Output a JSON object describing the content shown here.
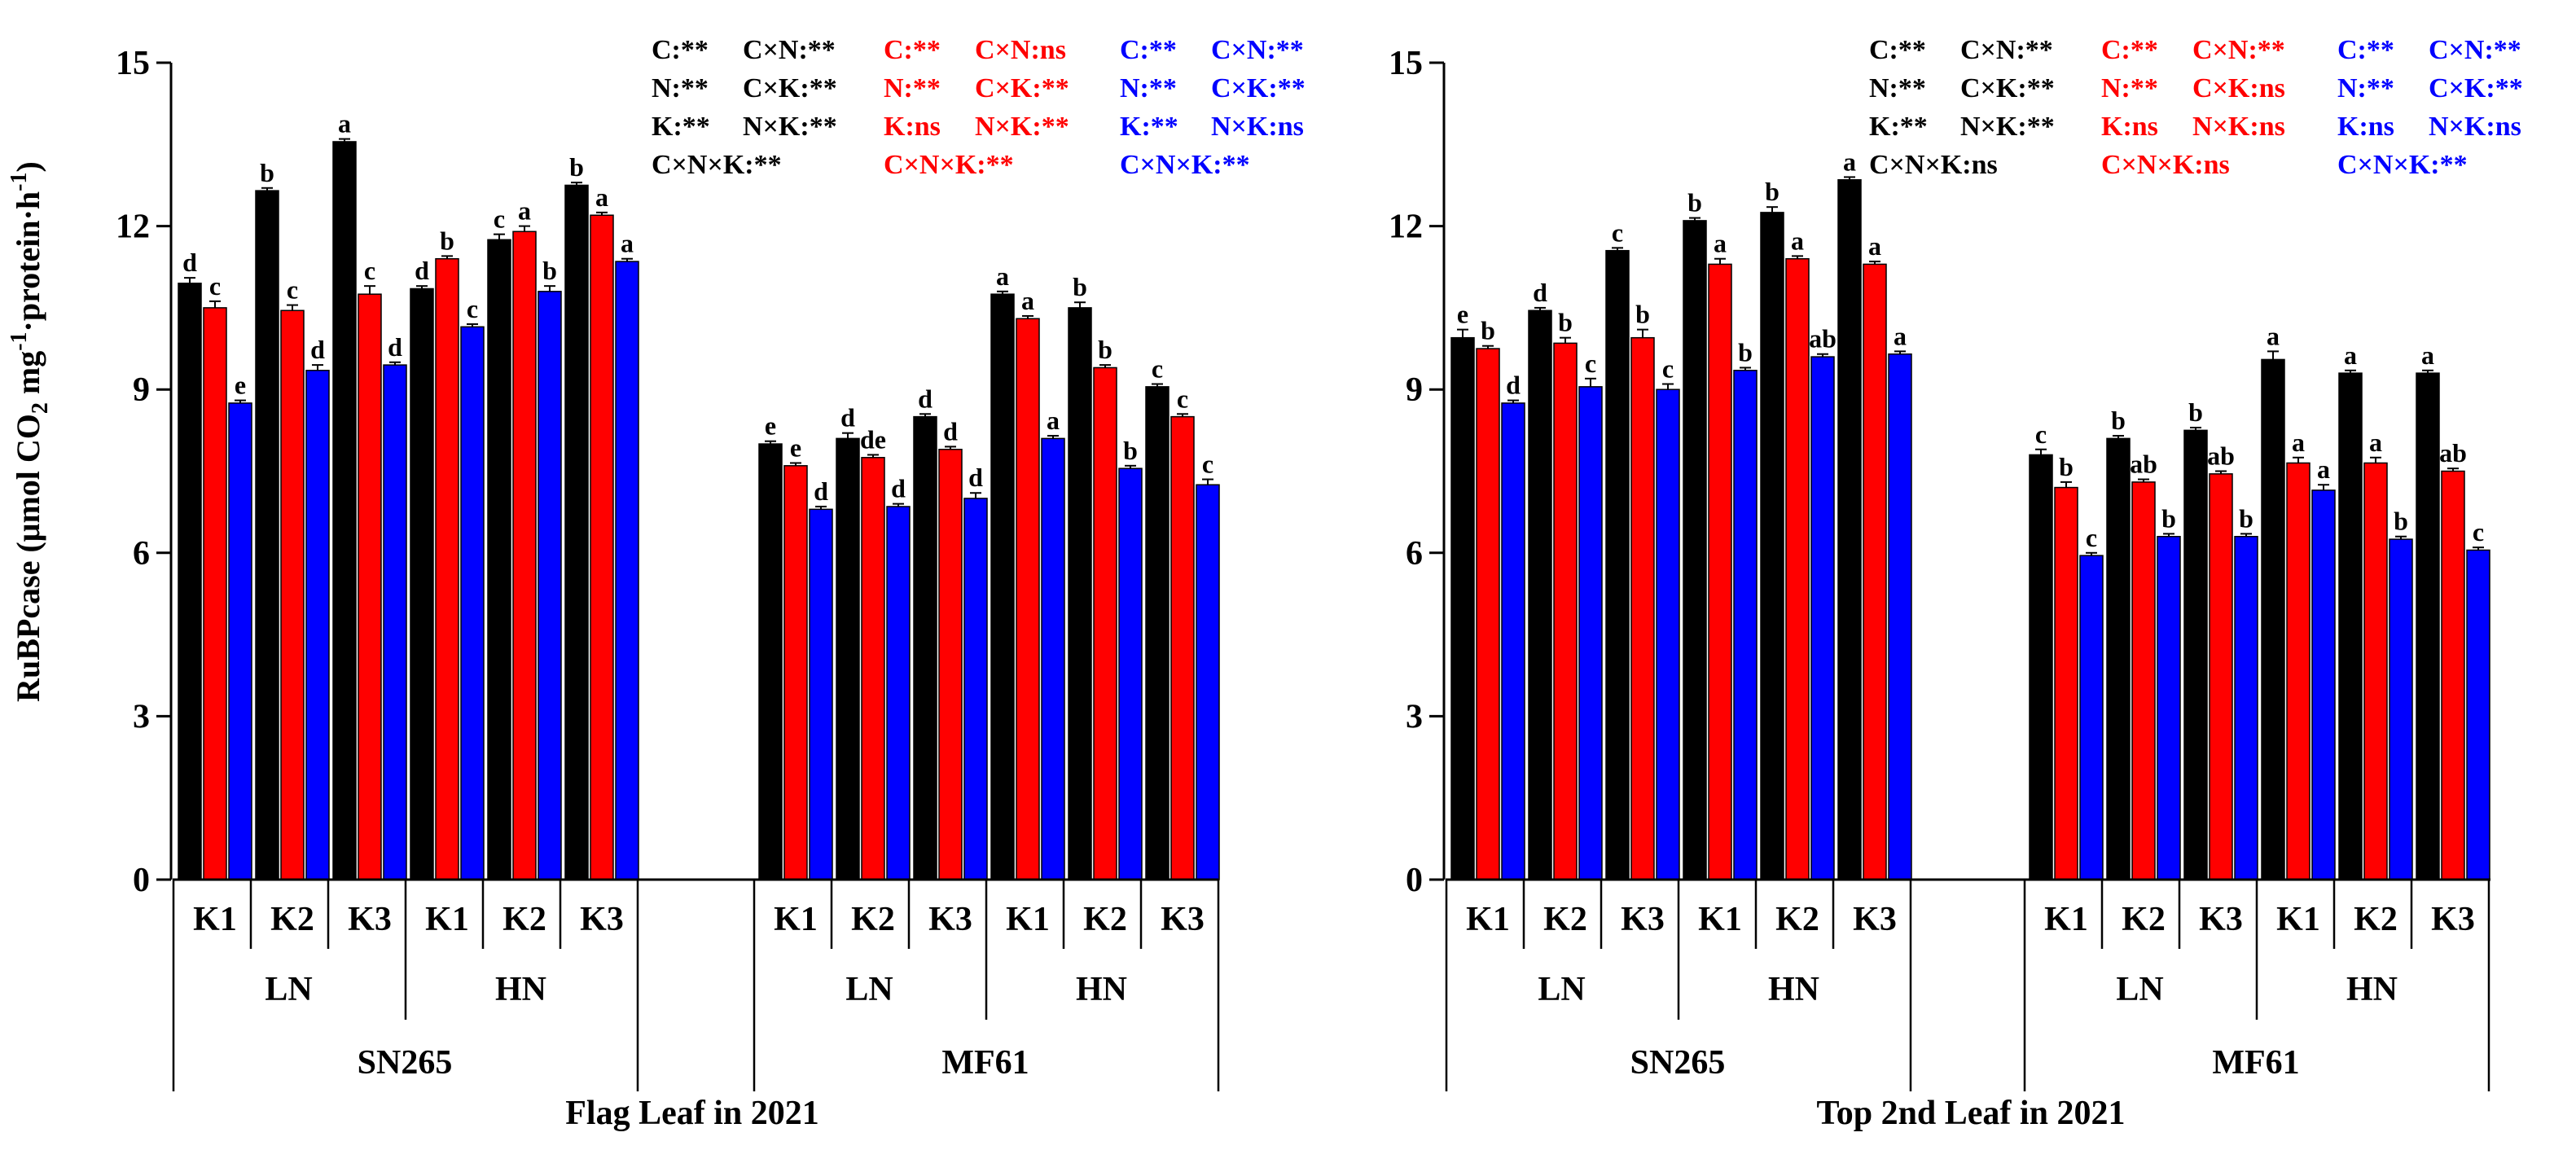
{
  "figure": {
    "ylabel_main": "RuBPcase (μmol CO",
    "ylabel_sub": "2",
    "ylabel_mid": " mg",
    "ylabel_sup1": "-1",
    "ylabel_tail": "·protein·h",
    "ylabel_sup2": "-1",
    "ylabel_close": ")"
  },
  "chart_data": [
    {
      "type": "bar",
      "title": "Flag Leaf in 2021",
      "ylim": [
        0,
        15
      ],
      "yticks": [
        "0",
        "3",
        "6",
        "9",
        "12",
        "15"
      ],
      "ylabel": "RuBPcase (μmol CO2 mg-1·protein·h-1)",
      "series_colors": [
        "#000000",
        "#ff0000",
        "#0000ff"
      ],
      "groups": [
        {
          "cultivar": "SN265",
          "nitrogen": [
            {
              "level": "LN",
              "k": [
                {
                  "label": "K1",
                  "values": [
                    10.95,
                    10.5,
                    8.75
                  ],
                  "err": [
                    0.1,
                    0.12,
                    0.05
                  ],
                  "letters": [
                    "d",
                    "c",
                    "e"
                  ]
                },
                {
                  "label": "K2",
                  "values": [
                    12.65,
                    10.45,
                    9.35
                  ],
                  "err": [
                    0.05,
                    0.1,
                    0.1
                  ],
                  "letters": [
                    "b",
                    "c",
                    "d"
                  ]
                },
                {
                  "label": "K3",
                  "values": [
                    13.55,
                    10.75,
                    9.45
                  ],
                  "err": [
                    0.05,
                    0.15,
                    0.05
                  ],
                  "letters": [
                    "a",
                    "c",
                    "d"
                  ]
                }
              ]
            },
            {
              "level": "HN",
              "k": [
                {
                  "label": "K1",
                  "values": [
                    10.85,
                    11.4,
                    10.15
                  ],
                  "err": [
                    0.05,
                    0.05,
                    0.05
                  ],
                  "letters": [
                    "d",
                    "b",
                    "c"
                  ]
                },
                {
                  "label": "K2",
                  "values": [
                    11.75,
                    11.9,
                    10.8
                  ],
                  "err": [
                    0.1,
                    0.1,
                    0.1
                  ],
                  "letters": [
                    "c",
                    "a",
                    "b"
                  ]
                },
                {
                  "label": "K3",
                  "values": [
                    12.75,
                    12.2,
                    11.35
                  ],
                  "err": [
                    0.05,
                    0.05,
                    0.05
                  ],
                  "letters": [
                    "b",
                    "a",
                    "a"
                  ]
                }
              ]
            }
          ]
        },
        {
          "cultivar": "MF61",
          "nitrogen": [
            {
              "level": "LN",
              "k": [
                {
                  "label": "K1",
                  "values": [
                    8.0,
                    7.6,
                    6.8
                  ],
                  "err": [
                    0.05,
                    0.05,
                    0.05
                  ],
                  "letters": [
                    "e",
                    "e",
                    "d"
                  ]
                },
                {
                  "label": "K2",
                  "values": [
                    8.1,
                    7.75,
                    6.85
                  ],
                  "err": [
                    0.1,
                    0.05,
                    0.05
                  ],
                  "letters": [
                    "d",
                    "de",
                    "d"
                  ]
                },
                {
                  "label": "K3",
                  "values": [
                    8.5,
                    7.9,
                    7.0
                  ],
                  "err": [
                    0.05,
                    0.05,
                    0.1
                  ],
                  "letters": [
                    "d",
                    "d",
                    "d"
                  ]
                }
              ]
            },
            {
              "level": "HN",
              "k": [
                {
                  "label": "K1",
                  "values": [
                    10.75,
                    10.3,
                    8.1
                  ],
                  "err": [
                    0.05,
                    0.05,
                    0.05
                  ],
                  "letters": [
                    "a",
                    "a",
                    "a"
                  ]
                },
                {
                  "label": "K2",
                  "values": [
                    10.5,
                    9.4,
                    7.55
                  ],
                  "err": [
                    0.1,
                    0.05,
                    0.05
                  ],
                  "letters": [
                    "b",
                    "b",
                    "b"
                  ]
                },
                {
                  "label": "K3",
                  "values": [
                    9.05,
                    8.5,
                    7.25
                  ],
                  "err": [
                    0.05,
                    0.05,
                    0.1
                  ],
                  "letters": [
                    "c",
                    "c",
                    "c"
                  ]
                }
              ]
            }
          ]
        }
      ],
      "annotations": [
        {
          "color": "#000000",
          "lines": [
            [
              "C:**",
              "C×N:**"
            ],
            [
              "N:**",
              "C×K:**"
            ],
            [
              "K:**",
              "N×K:**"
            ],
            [
              "C×N×K:**",
              ""
            ]
          ]
        },
        {
          "color": "#ff0000",
          "lines": [
            [
              "C:**",
              "C×N:ns"
            ],
            [
              "N:**",
              "C×K:**"
            ],
            [
              "K:ns",
              "N×K:**"
            ],
            [
              "C×N×K:**",
              ""
            ]
          ]
        },
        {
          "color": "#0000ff",
          "lines": [
            [
              "C:**",
              "C×N:**"
            ],
            [
              "N:**",
              "C×K:**"
            ],
            [
              "K:**",
              "N×K:ns"
            ],
            [
              "C×N×K:**",
              ""
            ]
          ]
        }
      ]
    },
    {
      "type": "bar",
      "title": "Top 2nd Leaf in 2021",
      "ylim": [
        0,
        15
      ],
      "yticks": [
        "0",
        "3",
        "6",
        "9",
        "12",
        "15"
      ],
      "ylabel": "",
      "series_colors": [
        "#000000",
        "#ff0000",
        "#0000ff"
      ],
      "groups": [
        {
          "cultivar": "SN265",
          "nitrogen": [
            {
              "level": "LN",
              "k": [
                {
                  "label": "K1",
                  "values": [
                    9.95,
                    9.75,
                    8.75
                  ],
                  "err": [
                    0.15,
                    0.05,
                    0.05
                  ],
                  "letters": [
                    "e",
                    "b",
                    "d"
                  ]
                },
                {
                  "label": "K2",
                  "values": [
                    10.45,
                    9.85,
                    9.05
                  ],
                  "err": [
                    0.05,
                    0.1,
                    0.15
                  ],
                  "letters": [
                    "d",
                    "b",
                    "c"
                  ]
                },
                {
                  "label": "K3",
                  "values": [
                    11.55,
                    9.95,
                    9.0
                  ],
                  "err": [
                    0.05,
                    0.15,
                    0.1
                  ],
                  "letters": [
                    "c",
                    "b",
                    "c"
                  ]
                }
              ]
            },
            {
              "level": "HN",
              "k": [
                {
                  "label": "K1",
                  "values": [
                    12.1,
                    11.3,
                    9.35
                  ],
                  "err": [
                    0.05,
                    0.1,
                    0.05
                  ],
                  "letters": [
                    "b",
                    "a",
                    "b"
                  ]
                },
                {
                  "label": "K2",
                  "values": [
                    12.25,
                    11.4,
                    9.6
                  ],
                  "err": [
                    0.1,
                    0.05,
                    0.05
                  ],
                  "letters": [
                    "b",
                    "a",
                    "ab"
                  ]
                },
                {
                  "label": "K3",
                  "values": [
                    12.85,
                    11.3,
                    9.65
                  ],
                  "err": [
                    0.05,
                    0.05,
                    0.05
                  ],
                  "letters": [
                    "a",
                    "a",
                    "a"
                  ]
                }
              ]
            }
          ]
        },
        {
          "cultivar": "MF61",
          "nitrogen": [
            {
              "level": "LN",
              "k": [
                {
                  "label": "K1",
                  "values": [
                    7.8,
                    7.2,
                    5.95
                  ],
                  "err": [
                    0.1,
                    0.1,
                    0.05
                  ],
                  "letters": [
                    "c",
                    "b",
                    "c"
                  ]
                },
                {
                  "label": "K2",
                  "values": [
                    8.1,
                    7.3,
                    6.3
                  ],
                  "err": [
                    0.05,
                    0.05,
                    0.05
                  ],
                  "letters": [
                    "b",
                    "ab",
                    "b"
                  ]
                },
                {
                  "label": "K3",
                  "values": [
                    8.25,
                    7.45,
                    6.3
                  ],
                  "err": [
                    0.05,
                    0.05,
                    0.05
                  ],
                  "letters": [
                    "b",
                    "ab",
                    "b"
                  ]
                }
              ]
            },
            {
              "level": "HN",
              "k": [
                {
                  "label": "K1",
                  "values": [
                    9.55,
                    7.65,
                    7.15
                  ],
                  "err": [
                    0.15,
                    0.1,
                    0.1
                  ],
                  "letters": [
                    "a",
                    "a",
                    "a"
                  ]
                },
                {
                  "label": "K2",
                  "values": [
                    9.3,
                    7.65,
                    6.25
                  ],
                  "err": [
                    0.05,
                    0.1,
                    0.05
                  ],
                  "letters": [
                    "a",
                    "a",
                    "b"
                  ]
                },
                {
                  "label": "K3",
                  "values": [
                    9.3,
                    7.5,
                    6.05
                  ],
                  "err": [
                    0.05,
                    0.05,
                    0.05
                  ],
                  "letters": [
                    "a",
                    "ab",
                    "c"
                  ]
                }
              ]
            }
          ]
        }
      ],
      "annotations": [
        {
          "color": "#000000",
          "lines": [
            [
              "C:**",
              "C×N:**"
            ],
            [
              "N:**",
              "C×K:**"
            ],
            [
              "K:**",
              "N×K:**"
            ],
            [
              "C×N×K:ns",
              ""
            ]
          ]
        },
        {
          "color": "#ff0000",
          "lines": [
            [
              "C:**",
              "C×N:**"
            ],
            [
              "N:**",
              "C×K:ns"
            ],
            [
              "K:ns",
              "N×K:ns"
            ],
            [
              "C×N×K:ns",
              ""
            ]
          ]
        },
        {
          "color": "#0000ff",
          "lines": [
            [
              "C:**",
              "C×N:**"
            ],
            [
              "N:**",
              "C×K:**"
            ],
            [
              "K:ns",
              "N×K:ns"
            ],
            [
              "C×N×K:**",
              ""
            ]
          ]
        }
      ]
    }
  ]
}
